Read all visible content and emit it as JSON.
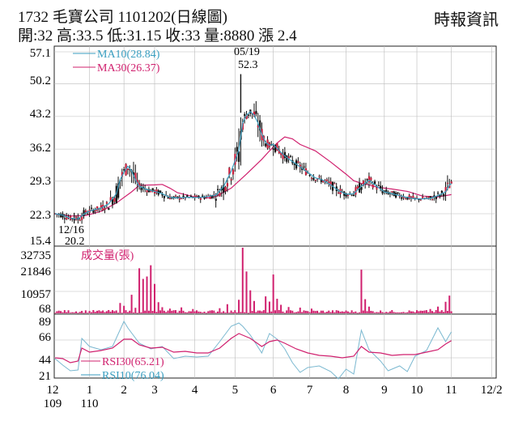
{
  "header": {
    "title": "1732  毛寶公司 1101202(日線圖)",
    "quote": "開:32 高:33.5 低:31.15 收:33 量:8880 漲 2.4",
    "source": "時報資訊"
  },
  "colors": {
    "ma10": "#3a9ec0",
    "ma30": "#d0206e",
    "volume": "#d0206e",
    "rsi30": "#d0206e",
    "rsi10": "#7ab8d0",
    "candle": "#111111",
    "up_candle": "#c81e3c",
    "grid": "#bbbbbb"
  },
  "chart_data": [
    {
      "type": "candlestick",
      "panel": "price",
      "yticks": [
        "57.1",
        "50.2",
        "43.2",
        "36.2",
        "29.3",
        "22.3",
        "15.4"
      ],
      "ylim": [
        15.4,
        57.1
      ],
      "legend": [
        {
          "label": "MA10(28.84)",
          "color": "#3a9ec0"
        },
        {
          "label": "MA30(26.37)",
          "color": "#d0206e"
        }
      ],
      "annotations": {
        "high_date": "05/19",
        "high_value": "52.3",
        "low_date": "12/16",
        "low_value": "20.2"
      },
      "ma10": [
        [
          0,
          22.3
        ],
        [
          4,
          22.0
        ],
        [
          8,
          21.3
        ],
        [
          12,
          21.2
        ],
        [
          16,
          22.5
        ],
        [
          20,
          23.1
        ],
        [
          24,
          23.5
        ],
        [
          28,
          24.4
        ],
        [
          32,
          26.6
        ],
        [
          34,
          29.6
        ],
        [
          36,
          31.2
        ],
        [
          38,
          32.5
        ],
        [
          40,
          31.5
        ],
        [
          42,
          29.6
        ],
        [
          44,
          28.2
        ],
        [
          48,
          27.5
        ],
        [
          52,
          27.1
        ],
        [
          56,
          26.6
        ],
        [
          60,
          25.8
        ],
        [
          64,
          25.7
        ],
        [
          68,
          25.8
        ],
        [
          72,
          25.8
        ],
        [
          76,
          25.8
        ],
        [
          80,
          26.0
        ],
        [
          84,
          26.3
        ],
        [
          88,
          28.1
        ],
        [
          92,
          31.4
        ],
        [
          96,
          36.0
        ],
        [
          98,
          41.8
        ],
        [
          100,
          43.5
        ],
        [
          102,
          44.2
        ],
        [
          104,
          43.5
        ],
        [
          106,
          41.8
        ],
        [
          108,
          39.4
        ],
        [
          110,
          37.6
        ],
        [
          112,
          37.0
        ],
        [
          114,
          37.2
        ],
        [
          116,
          36.3
        ],
        [
          120,
          34.7
        ],
        [
          124,
          33.5
        ],
        [
          128,
          32.4
        ],
        [
          132,
          31.2
        ],
        [
          136,
          30.0
        ],
        [
          140,
          29.5
        ],
        [
          144,
          28.5
        ],
        [
          148,
          27.3
        ],
        [
          152,
          26.5
        ],
        [
          156,
          26.6
        ],
        [
          160,
          28.2
        ],
        [
          164,
          29.5
        ],
        [
          168,
          28.2
        ],
        [
          172,
          27.0
        ],
        [
          176,
          26.6
        ],
        [
          180,
          26.2
        ],
        [
          184,
          25.8
        ],
        [
          188,
          25.5
        ],
        [
          192,
          25.5
        ],
        [
          196,
          25.6
        ],
        [
          200,
          26.2
        ],
        [
          204,
          27.0
        ],
        [
          206,
          28.4
        ],
        [
          207,
          28.8
        ]
      ],
      "ma30": [
        [
          0,
          22.3
        ],
        [
          8,
          21.8
        ],
        [
          16,
          21.9
        ],
        [
          24,
          22.8
        ],
        [
          32,
          24.6
        ],
        [
          40,
          27.0
        ],
        [
          44,
          28.4
        ],
        [
          52,
          28.5
        ],
        [
          56,
          28.6
        ],
        [
          60,
          27.8
        ],
        [
          64,
          26.8
        ],
        [
          72,
          26.0
        ],
        [
          80,
          25.7
        ],
        [
          84,
          26.0
        ],
        [
          92,
          27.8
        ],
        [
          100,
          30.8
        ],
        [
          108,
          34.0
        ],
        [
          112,
          35.8
        ],
        [
          116,
          37.5
        ],
        [
          120,
          38.8
        ],
        [
          124,
          38.4
        ],
        [
          128,
          37.2
        ],
        [
          136,
          35.8
        ],
        [
          144,
          33.4
        ],
        [
          152,
          30.8
        ],
        [
          156,
          29.4
        ],
        [
          160,
          28.8
        ],
        [
          164,
          28.5
        ],
        [
          168,
          28.0
        ],
        [
          176,
          27.6
        ],
        [
          184,
          27.1
        ],
        [
          192,
          26.1
        ],
        [
          200,
          25.9
        ],
        [
          207,
          26.4
        ]
      ]
    },
    {
      "type": "bar",
      "panel": "volume",
      "label": "成交量(張)",
      "yticks": [
        "32735",
        "21846",
        "10957",
        "68"
      ],
      "ylim": [
        68,
        32735
      ],
      "spikes": [
        [
          34,
          5200
        ],
        [
          36,
          3800
        ],
        [
          40,
          9300
        ],
        [
          42,
          2800
        ],
        [
          44,
          22500
        ],
        [
          46,
          17200
        ],
        [
          48,
          18400
        ],
        [
          50,
          24000
        ],
        [
          52,
          14700
        ],
        [
          54,
          5600
        ],
        [
          56,
          3100
        ],
        [
          60,
          2400
        ],
        [
          66,
          3000
        ],
        [
          72,
          2200
        ],
        [
          86,
          2600
        ],
        [
          90,
          4600
        ],
        [
          96,
          6800
        ],
        [
          98,
          32735
        ],
        [
          100,
          20900
        ],
        [
          102,
          11500
        ],
        [
          104,
          6200
        ],
        [
          110,
          8500
        ],
        [
          112,
          5900
        ],
        [
          114,
          19400
        ],
        [
          116,
          7300
        ],
        [
          118,
          4300
        ],
        [
          122,
          3200
        ],
        [
          128,
          2900
        ],
        [
          134,
          2400
        ],
        [
          160,
          21800
        ],
        [
          162,
          7100
        ],
        [
          164,
          3400
        ],
        [
          196,
          2200
        ],
        [
          200,
          3400
        ],
        [
          204,
          5800
        ],
        [
          206,
          8880
        ]
      ]
    },
    {
      "type": "line",
      "panel": "rsi",
      "yticks": [
        "89",
        "66",
        "44",
        "21"
      ],
      "ylim": [
        14,
        91
      ],
      "legend": [
        {
          "label": "RSI30(65.21)",
          "color": "#d0206e"
        },
        {
          "label": "RSI10(76.04)",
          "color": "#7ab8d0"
        }
      ],
      "rsi30": [
        [
          0,
          44
        ],
        [
          4,
          43
        ],
        [
          8,
          38
        ],
        [
          12,
          40
        ],
        [
          14,
          56
        ],
        [
          18,
          51
        ],
        [
          24,
          53
        ],
        [
          30,
          56
        ],
        [
          36,
          67
        ],
        [
          40,
          67
        ],
        [
          44,
          60
        ],
        [
          50,
          56
        ],
        [
          56,
          57
        ],
        [
          62,
          51
        ],
        [
          68,
          52
        ],
        [
          74,
          50
        ],
        [
          80,
          50
        ],
        [
          86,
          56
        ],
        [
          92,
          68
        ],
        [
          96,
          74
        ],
        [
          98,
          72
        ],
        [
          102,
          68
        ],
        [
          108,
          58
        ],
        [
          112,
          64
        ],
        [
          116,
          66
        ],
        [
          120,
          62
        ],
        [
          126,
          55
        ],
        [
          132,
          50
        ],
        [
          138,
          47
        ],
        [
          144,
          46
        ],
        [
          150,
          44
        ],
        [
          156,
          46
        ],
        [
          160,
          58
        ],
        [
          164,
          51
        ],
        [
          170,
          50
        ],
        [
          176,
          47
        ],
        [
          182,
          48
        ],
        [
          188,
          48
        ],
        [
          194,
          51
        ],
        [
          200,
          54
        ],
        [
          204,
          61
        ],
        [
          207,
          65.21
        ]
      ],
      "rsi10": [
        [
          0,
          43
        ],
        [
          4,
          35
        ],
        [
          8,
          28
        ],
        [
          12,
          29
        ],
        [
          14,
          68
        ],
        [
          18,
          58
        ],
        [
          24,
          54
        ],
        [
          30,
          58
        ],
        [
          36,
          89
        ],
        [
          38,
          81
        ],
        [
          44,
          62
        ],
        [
          50,
          55
        ],
        [
          56,
          58
        ],
        [
          62,
          43
        ],
        [
          68,
          46
        ],
        [
          74,
          45
        ],
        [
          80,
          46
        ],
        [
          86,
          64
        ],
        [
          92,
          83
        ],
        [
          96,
          87
        ],
        [
          98,
          83
        ],
        [
          102,
          72
        ],
        [
          108,
          50
        ],
        [
          112,
          74
        ],
        [
          116,
          67
        ],
        [
          120,
          55
        ],
        [
          124,
          38
        ],
        [
          128,
          26
        ],
        [
          132,
          32
        ],
        [
          138,
          34
        ],
        [
          144,
          27
        ],
        [
          148,
          18
        ],
        [
          152,
          30
        ],
        [
          156,
          24
        ],
        [
          160,
          78
        ],
        [
          164,
          54
        ],
        [
          170,
          40
        ],
        [
          174,
          28
        ],
        [
          180,
          34
        ],
        [
          184,
          27
        ],
        [
          188,
          46
        ],
        [
          194,
          53
        ],
        [
          200,
          81
        ],
        [
          204,
          64
        ],
        [
          207,
          76.04
        ]
      ]
    }
  ],
  "xaxis": {
    "labels": [
      {
        "top": "12",
        "bottom": "109",
        "i": 0
      },
      {
        "top": "1",
        "bottom": "110",
        "i": 18
      },
      {
        "top": "2",
        "bottom": "",
        "i": 36
      },
      {
        "top": "3",
        "bottom": "",
        "i": 52
      },
      {
        "top": "4",
        "bottom": "",
        "i": 73
      },
      {
        "top": "5",
        "bottom": "",
        "i": 94
      },
      {
        "top": "6",
        "bottom": "",
        "i": 114
      },
      {
        "top": "7",
        "bottom": "",
        "i": 133
      },
      {
        "top": "8",
        "bottom": "",
        "i": 152
      },
      {
        "top": "9",
        "bottom": "",
        "i": 172
      },
      {
        "top": "10",
        "bottom": "",
        "i": 189
      },
      {
        "top": "11",
        "bottom": "",
        "i": 207
      },
      {
        "top": "12/2",
        "bottom": "",
        "i": 228
      }
    ]
  }
}
